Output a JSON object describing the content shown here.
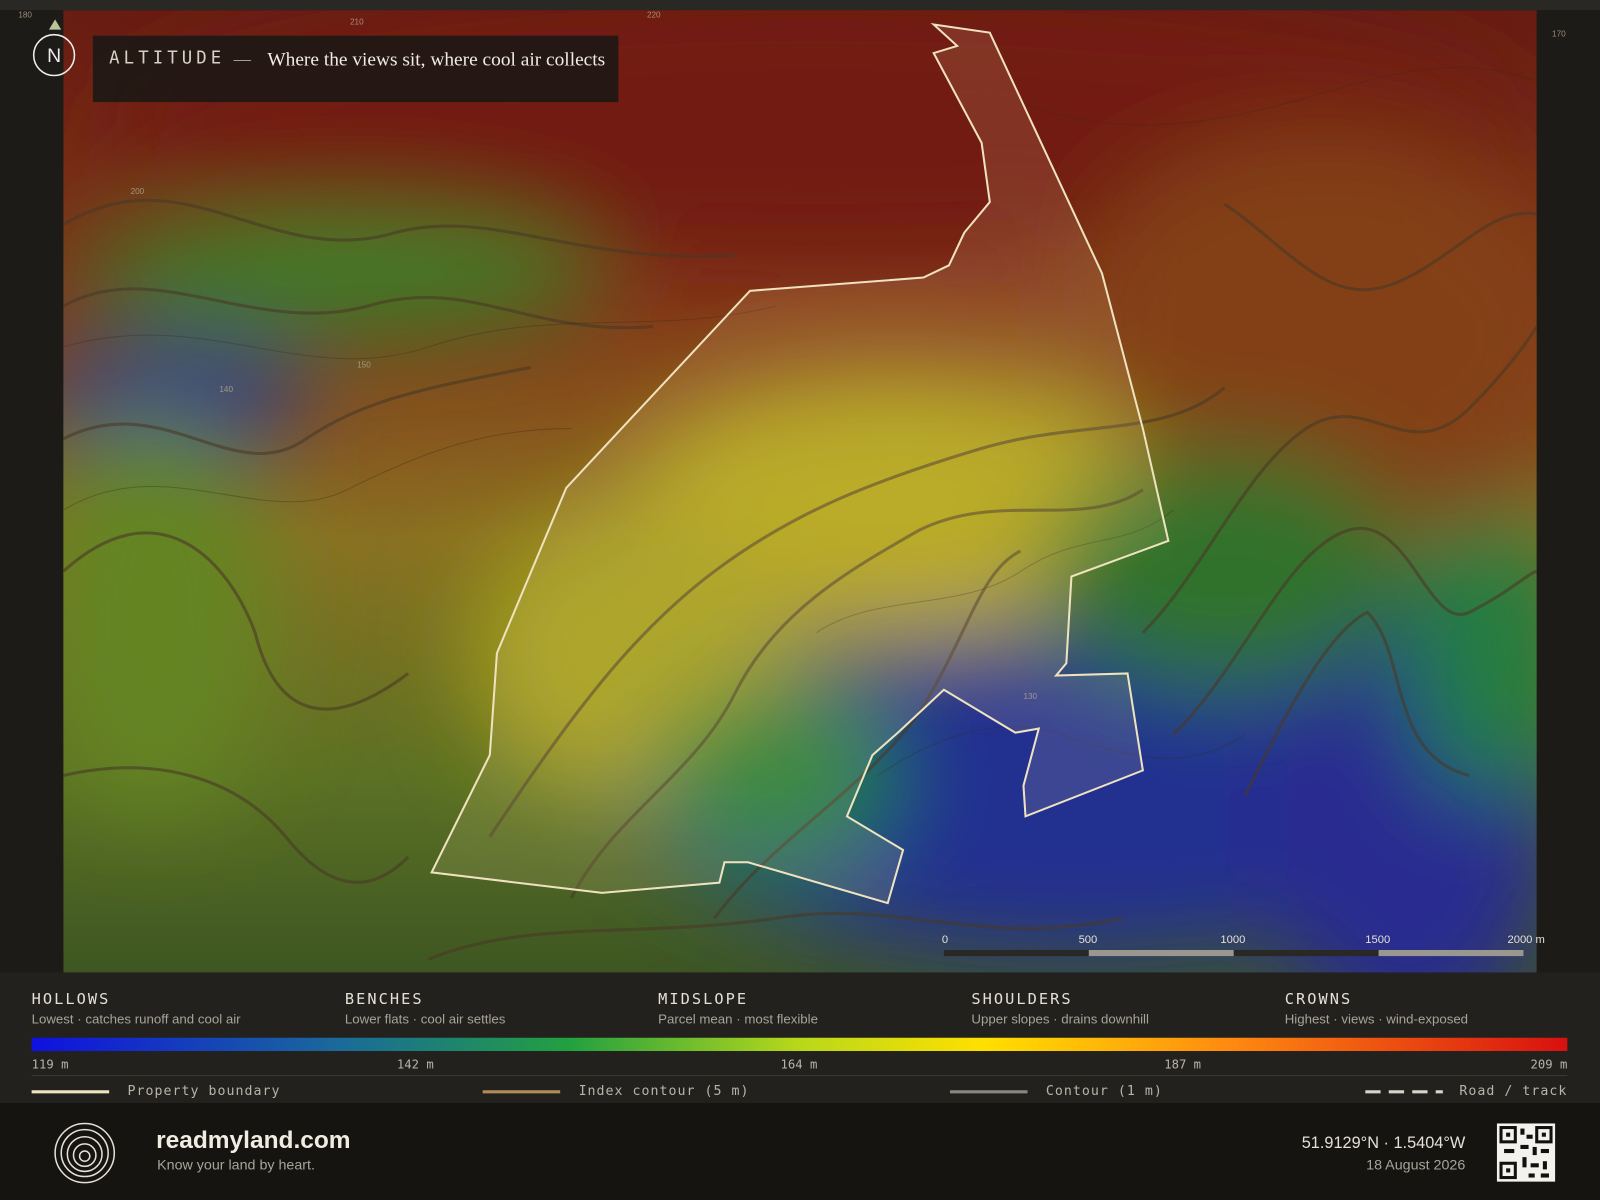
{
  "header": {
    "compass": "N",
    "title": "ALTITUDE",
    "dash": "—",
    "subtitle": "Where the views sit, where cool air collects"
  },
  "map": {
    "contour_labels": [
      "180",
      "210",
      "220",
      "170",
      "200",
      "150",
      "140",
      "130"
    ],
    "scale_bar": [
      "0",
      "500",
      "1000",
      "1500",
      "2000 m"
    ]
  },
  "legend": {
    "zones": [
      {
        "name": "HOLLOWS",
        "desc": "Lowest · catches runoff and cool air"
      },
      {
        "name": "BENCHES",
        "desc": "Lower flats · cool air settles"
      },
      {
        "name": "MIDSLOPE",
        "desc": "Parcel mean · most flexible"
      },
      {
        "name": "SHOULDERS",
        "desc": "Upper slopes · drains downhill"
      },
      {
        "name": "CROWNS",
        "desc": "Highest · views · wind-exposed"
      }
    ],
    "ticks": [
      "119 m",
      "142 m",
      "164 m",
      "187 m",
      "209 m"
    ],
    "keys": [
      "Property boundary",
      "Index contour (5 m)",
      "Contour (1 m)",
      "Road / track"
    ]
  },
  "footer": {
    "brand": "readmyland.com",
    "tagline": "Know your land by heart.",
    "coordinates": "51.9129°N · 1.5404°W",
    "date": "18 August 2026"
  }
}
